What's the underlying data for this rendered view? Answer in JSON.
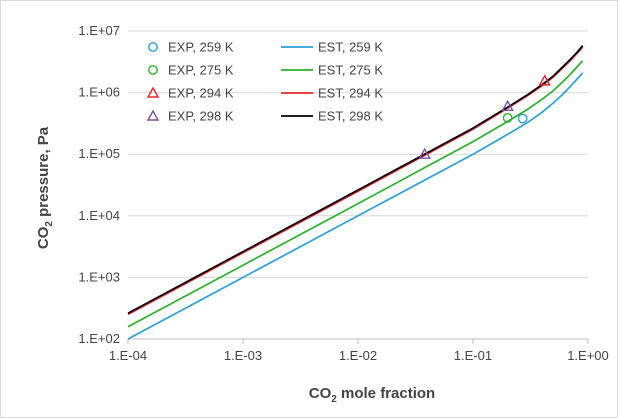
{
  "chart_data": {
    "type": "line",
    "xlabel": {
      "prefix": "CO",
      "sub": "2",
      "suffix": " mole fraction"
    },
    "ylabel": {
      "prefix": "CO",
      "sub": "2",
      "suffix": " pressure, Pa"
    },
    "x_scale": "log",
    "y_scale": "log",
    "xlim": [
      0.0001,
      1
    ],
    "ylim": [
      100,
      10000000
    ],
    "x_ticks": [
      {
        "value": 0.0001,
        "label": "1.E-04"
      },
      {
        "value": 0.001,
        "label": "1.E-03"
      },
      {
        "value": 0.01,
        "label": "1.E-02"
      },
      {
        "value": 0.1,
        "label": "1.E-01"
      },
      {
        "value": 1,
        "label": "1.E+00"
      }
    ],
    "y_ticks": [
      {
        "value": 100,
        "label": "1.E+02"
      },
      {
        "value": 1000,
        "label": "1.E+03"
      },
      {
        "value": 10000,
        "label": "1.E+04"
      },
      {
        "value": 100000,
        "label": "1.E+05"
      },
      {
        "value": 1000000,
        "label": "1.E+06"
      },
      {
        "value": 10000000,
        "label": "1.E+07"
      }
    ],
    "grid": {
      "y_major": true,
      "x_major": false
    },
    "legend_placement": "top-left",
    "experimental": [
      {
        "name": "EXP, 259 K",
        "marker": "circle",
        "color": "#2E9FD8",
        "points": [
          {
            "x": 0.27,
            "y": 380000
          }
        ]
      },
      {
        "name": "EXP, 275 K",
        "marker": "circle",
        "color": "#2BB02B",
        "points": [
          {
            "x": 0.2,
            "y": 390000
          }
        ]
      },
      {
        "name": "EXP, 294 K",
        "marker": "triangle",
        "color": "#E8242A",
        "points": [
          {
            "x": 0.42,
            "y": 1550000
          }
        ]
      },
      {
        "name": "EXP, 298 K",
        "marker": "triangle",
        "color": "#7A4F9E",
        "points": [
          {
            "x": 0.038,
            "y": 100000
          },
          {
            "x": 0.2,
            "y": 600000
          }
        ]
      }
    ],
    "estimated": [
      {
        "name": "EST, 259 K",
        "color": "#2E9FD8",
        "x": [
          0.0001,
          0.001,
          0.01,
          0.1,
          0.2,
          0.3,
          0.4,
          0.5,
          0.6,
          0.7,
          0.8,
          0.9
        ],
        "y": [
          100,
          1000,
          10000,
          100000,
          210000,
          330000,
          480000,
          680000,
          930000,
          1250000,
          1650000,
          2100000
        ]
      },
      {
        "name": "EST, 275 K",
        "color": "#2BB02B",
        "x": [
          0.0001,
          0.001,
          0.01,
          0.1,
          0.2,
          0.3,
          0.4,
          0.5,
          0.6,
          0.7,
          0.8,
          0.9
        ],
        "y": [
          158,
          1580,
          15800,
          160000,
          340000,
          540000,
          780000,
          1080000,
          1480000,
          1980000,
          2600000,
          3300000
        ]
      },
      {
        "name": "EST, 294 K",
        "color": "#E8242A",
        "x": [
          0.0001,
          0.001,
          0.01,
          0.1,
          0.2,
          0.3,
          0.4,
          0.5,
          0.6,
          0.7,
          0.8,
          0.9
        ],
        "y": [
          251,
          2510,
          25100,
          255000,
          560000,
          900000,
          1300000,
          1800000,
          2500000,
          3300000,
          4300000,
          5500000
        ]
      },
      {
        "name": "EST, 298 K",
        "color": "#000000",
        "x": [
          0.0001,
          0.001,
          0.01,
          0.1,
          0.2,
          0.3,
          0.4,
          0.5,
          0.6,
          0.7,
          0.8,
          0.9
        ],
        "y": [
          262,
          2620,
          26200,
          265000,
          580000,
          930000,
          1350000,
          1870000,
          2600000,
          3450000,
          4500000,
          5800000
        ]
      }
    ]
  }
}
